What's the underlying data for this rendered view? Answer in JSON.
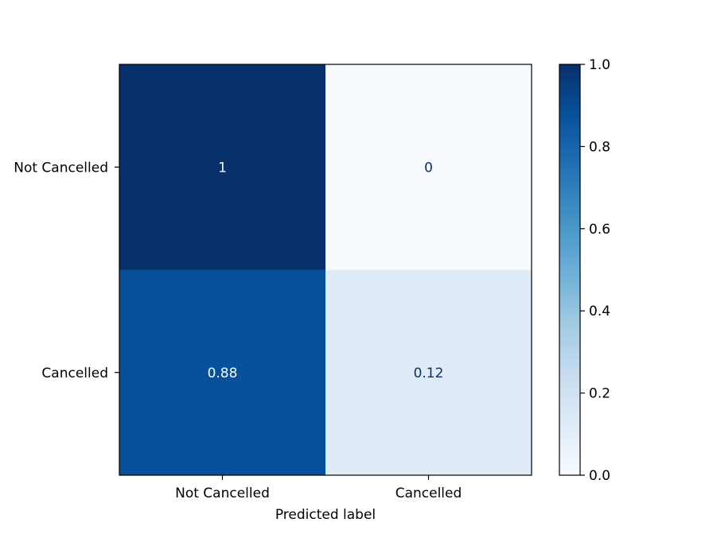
{
  "chart_data": {
    "type": "heatmap",
    "title": "",
    "xlabel": "Predicted label",
    "ylabel": "",
    "x_categories": [
      "Not Cancelled",
      "Cancelled"
    ],
    "y_categories": [
      "Not Cancelled",
      "Cancelled"
    ],
    "values": [
      [
        1,
        0
      ],
      [
        0.88,
        0.12
      ]
    ],
    "value_labels": [
      [
        "1",
        "0"
      ],
      [
        "0.88",
        "0.12"
      ]
    ],
    "colormap": "Blues",
    "colorbar": {
      "range": [
        0.0,
        1.0
      ],
      "ticks": [
        0.0,
        0.2,
        0.4,
        0.6,
        0.8,
        1.0
      ],
      "tick_labels": [
        "0.0",
        "0.2",
        "0.4",
        "0.6",
        "0.8",
        "1.0"
      ]
    },
    "colors": {
      "low": "#f7fbff",
      "high": "#08306b",
      "light_text": "#f7fbff",
      "dark_text": "#08306b"
    }
  }
}
